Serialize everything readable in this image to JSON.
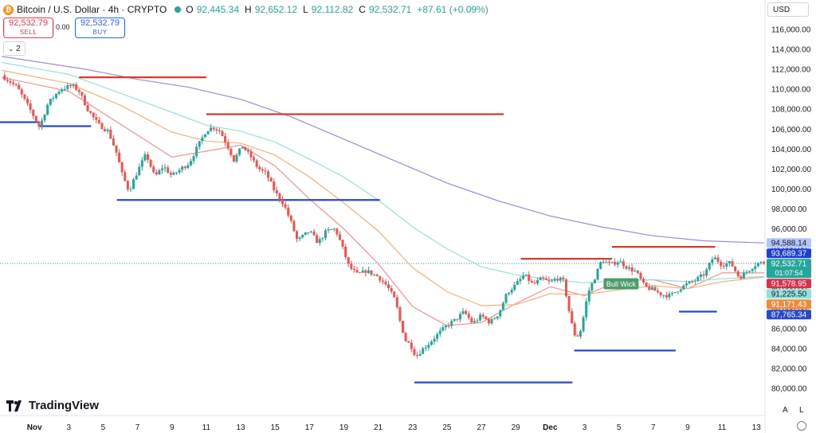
{
  "header": {
    "symbol": "Bitcoin / U.S. Dollar · 4h · CRYPTO",
    "coin_glyph": "₿",
    "ohlc": [
      {
        "k": "O",
        "v": "92,445.34"
      },
      {
        "k": "H",
        "v": "92,652.12"
      },
      {
        "k": "L",
        "v": "92,112.82"
      },
      {
        "k": "C",
        "v": "92,532.71"
      }
    ],
    "change": "+87.61 (+0.09%)",
    "change_color": "#26a69a"
  },
  "trade": {
    "sell_price": "92,532.79",
    "sell_label": "SELL",
    "buy_price": "92,532.79",
    "buy_label": "BUY",
    "spread": "0.00"
  },
  "indicators_count": "2",
  "currency": "USD",
  "branding": "TradingView",
  "controls": {
    "auto": "A",
    "log": "L"
  },
  "chart_data": {
    "type": "candlestick",
    "interval": "4h",
    "y_axis": {
      "ticks": [
        80000,
        82000,
        84000,
        86000,
        88000,
        90000,
        92000,
        94000,
        96000,
        98000,
        100000,
        102000,
        104000,
        106000,
        108000,
        110000,
        112000,
        114000,
        116000
      ],
      "tick_labels": [
        "80,000.00",
        "82,000.00",
        "84,000.00",
        "86,000.00",
        "88,000.00",
        "90,000.00",
        "92,000.00",
        "94,000.00",
        "96,000.00",
        "98,000.00",
        "100,000.00",
        "102,000.00",
        "104,000.00",
        "106,000.00",
        "108,000.00",
        "110,000.00",
        "112,000.00",
        "114,000.00",
        "116,000.00"
      ],
      "range": [
        79200,
        117200
      ]
    },
    "x_axis": {
      "ticks": [
        0,
        2,
        4,
        6,
        8,
        10,
        12,
        14,
        16,
        18,
        20,
        22,
        24,
        26,
        28,
        30,
        32,
        34,
        36,
        38,
        40,
        42
      ],
      "tick_labels": [
        "Nov",
        "3",
        "5",
        "7",
        "9",
        "11",
        "13",
        "15",
        "17",
        "19",
        "21",
        "23",
        "25",
        "27",
        "29",
        "Dec",
        "3",
        "5",
        "7",
        "9",
        "11",
        "13"
      ],
      "range_days": [
        -2,
        42.5
      ],
      "unit": "days since Nov 1"
    },
    "price_path": [
      [
        -1.9,
        111400
      ],
      [
        -1.0,
        110200
      ],
      [
        -0.2,
        107800
      ],
      [
        0.3,
        106200
      ],
      [
        0.8,
        108600
      ],
      [
        1.5,
        110000
      ],
      [
        2.2,
        110400
      ],
      [
        2.6,
        109800
      ],
      [
        3.1,
        108000
      ],
      [
        3.7,
        106500
      ],
      [
        4.3,
        105800
      ],
      [
        4.8,
        103500
      ],
      [
        5.1,
        101500
      ],
      [
        5.5,
        99800
      ],
      [
        6.0,
        101800
      ],
      [
        6.5,
        103500
      ],
      [
        7.0,
        101200
      ],
      [
        7.5,
        102300
      ],
      [
        8.0,
        101300
      ],
      [
        8.5,
        102000
      ],
      [
        9.0,
        102600
      ],
      [
        9.6,
        104600
      ],
      [
        10.0,
        105900
      ],
      [
        10.4,
        106200
      ],
      [
        10.8,
        105800
      ],
      [
        11.3,
        104100
      ],
      [
        11.6,
        102900
      ],
      [
        12.1,
        104300
      ],
      [
        12.6,
        103200
      ],
      [
        13.0,
        102100
      ],
      [
        13.5,
        101500
      ],
      [
        14.0,
        99700
      ],
      [
        14.5,
        98500
      ],
      [
        14.9,
        96800
      ],
      [
        15.3,
        94800
      ],
      [
        16.0,
        95800
      ],
      [
        16.5,
        94600
      ],
      [
        17.0,
        95800
      ],
      [
        17.5,
        96000
      ],
      [
        17.8,
        94700
      ],
      [
        18.3,
        92200
      ],
      [
        18.8,
        91400
      ],
      [
        19.3,
        91800
      ],
      [
        20.0,
        91200
      ],
      [
        20.5,
        90300
      ],
      [
        21.0,
        88800
      ],
      [
        21.3,
        86500
      ],
      [
        21.6,
        84800
      ],
      [
        21.9,
        84300
      ],
      [
        22.2,
        83200
      ],
      [
        22.5,
        83800
      ],
      [
        23.0,
        84600
      ],
      [
        23.5,
        85500
      ],
      [
        24.0,
        86300
      ],
      [
        24.5,
        86900
      ],
      [
        25.0,
        87700
      ],
      [
        25.5,
        86500
      ],
      [
        26.0,
        87300
      ],
      [
        26.5,
        86600
      ],
      [
        27.0,
        87500
      ],
      [
        27.5,
        89600
      ],
      [
        28.0,
        90400
      ],
      [
        28.5,
        91400
      ],
      [
        29.0,
        90400
      ],
      [
        29.5,
        91000
      ],
      [
        30.0,
        90600
      ],
      [
        30.4,
        91100
      ],
      [
        30.8,
        90700
      ],
      [
        31.2,
        86800
      ],
      [
        31.5,
        85000
      ],
      [
        31.8,
        85900
      ],
      [
        32.2,
        89600
      ],
      [
        32.6,
        91100
      ],
      [
        33.0,
        92900
      ],
      [
        33.5,
        92400
      ],
      [
        34.0,
        92800
      ],
      [
        34.5,
        92100
      ],
      [
        35.0,
        91700
      ],
      [
        35.5,
        90200
      ],
      [
        36.0,
        89900
      ],
      [
        36.5,
        89400
      ],
      [
        37.0,
        89300
      ],
      [
        37.5,
        90000
      ],
      [
        38.0,
        90500
      ],
      [
        38.5,
        90900
      ],
      [
        39.0,
        91500
      ],
      [
        39.5,
        93200
      ],
      [
        40.0,
        92400
      ],
      [
        40.5,
        92600
      ],
      [
        41.0,
        91100
      ],
      [
        41.5,
        91800
      ],
      [
        42.0,
        92500
      ],
      [
        42.2,
        92600
      ],
      [
        42.45,
        92532.71
      ]
    ],
    "moving_averages": [
      {
        "color": "#f2928e",
        "points": [
          [
            -1.9,
            111200
          ],
          [
            2,
            109800
          ],
          [
            5,
            106500
          ],
          [
            8,
            103200
          ],
          [
            10,
            103800
          ],
          [
            12,
            104400
          ],
          [
            14,
            102300
          ],
          [
            16,
            99000
          ],
          [
            18,
            96000
          ],
          [
            20,
            92500
          ],
          [
            22,
            88200
          ],
          [
            24,
            86300
          ],
          [
            26,
            86600
          ],
          [
            28,
            88500
          ],
          [
            30,
            90200
          ],
          [
            32,
            89300
          ],
          [
            34,
            90800
          ],
          [
            36,
            90900
          ],
          [
            38,
            90000
          ],
          [
            40,
            91600
          ],
          [
            42.45,
            91578.95
          ]
        ]
      },
      {
        "color": "#f5b17a",
        "points": [
          [
            -1.9,
            111900
          ],
          [
            2,
            110600
          ],
          [
            5,
            108400
          ],
          [
            8,
            105700
          ],
          [
            10,
            104800
          ],
          [
            12,
            104600
          ],
          [
            14,
            103400
          ],
          [
            16,
            101200
          ],
          [
            18,
            98600
          ],
          [
            20,
            95800
          ],
          [
            22,
            92100
          ],
          [
            24,
            89700
          ],
          [
            26,
            88300
          ],
          [
            28,
            88400
          ],
          [
            30,
            89500
          ],
          [
            32,
            89400
          ],
          [
            34,
            89900
          ],
          [
            36,
            90300
          ],
          [
            38,
            90000
          ],
          [
            40,
            90700
          ],
          [
            42.45,
            91171.43
          ]
        ]
      },
      {
        "color": "#9bded9",
        "points": [
          [
            -1.9,
            112700
          ],
          [
            2,
            111500
          ],
          [
            5,
            109600
          ],
          [
            8,
            107700
          ],
          [
            10,
            106400
          ],
          [
            12,
            105800
          ],
          [
            14,
            104700
          ],
          [
            16,
            103000
          ],
          [
            18,
            101200
          ],
          [
            20,
            98900
          ],
          [
            22,
            96200
          ],
          [
            24,
            94000
          ],
          [
            26,
            92200
          ],
          [
            28,
            91400
          ],
          [
            30,
            90900
          ],
          [
            32,
            90600
          ],
          [
            34,
            90800
          ],
          [
            36,
            90900
          ],
          [
            38,
            90700
          ],
          [
            40,
            91000
          ],
          [
            42.45,
            91225.5
          ]
        ]
      },
      {
        "color": "#9d8ccf",
        "points": [
          [
            -1.9,
            113300
          ],
          [
            0,
            112800
          ],
          [
            3,
            112000
          ],
          [
            6,
            111000
          ],
          [
            9,
            110200
          ],
          [
            12,
            109000
          ],
          [
            15,
            107200
          ],
          [
            18,
            105000
          ],
          [
            21,
            102800
          ],
          [
            24,
            100600
          ],
          [
            27,
            98800
          ],
          [
            30,
            97300
          ],
          [
            33,
            96200
          ],
          [
            36,
            95300
          ],
          [
            39,
            94800
          ],
          [
            42.45,
            94588.14
          ]
        ]
      }
    ],
    "horizontal_levels": [
      {
        "color": "#d23c2f",
        "price": 111200,
        "x_from": 2.6,
        "x_to": 10.0
      },
      {
        "color": "#d23c2f",
        "price": 107500,
        "x_from": 10.0,
        "x_to": 27.3
      },
      {
        "color": "#d23c2f",
        "price": 93000,
        "x_from": 28.3,
        "x_to": 33.6
      },
      {
        "color": "#d23c2f",
        "price": 94200,
        "x_from": 33.6,
        "x_to": 39.6
      },
      {
        "color": "#2a49c9",
        "price": 106700,
        "x_from": -2.0,
        "x_to": 0.3
      },
      {
        "color": "#2a49c9",
        "price": 106300,
        "x_from": 0.3,
        "x_to": 3.3
      },
      {
        "color": "#2a49c9",
        "price": 98900,
        "x_from": 4.8,
        "x_to": 20.1
      },
      {
        "color": "#2a49c9",
        "price": 80600,
        "x_from": 22.1,
        "x_to": 31.3
      },
      {
        "color": "#2a49c9",
        "price": 83800,
        "x_from": 31.4,
        "x_to": 37.3
      },
      {
        "color": "#2a49c9",
        "price": 87700,
        "x_from": 37.5,
        "x_to": 39.7
      }
    ],
    "annotation": {
      "text": "Bull Wick",
      "price": 90500,
      "x": 33.2,
      "bg": "#4f9b6e"
    },
    "price_labels": [
      {
        "text": "94,588.14",
        "bg": "#b3c5ff",
        "fg": "#131722",
        "price": 94588.14
      },
      {
        "text": "93,689.37",
        "bg": "#1e3fd1",
        "fg": "#ffffff",
        "price": 93689.37
      },
      {
        "text": "92,532.71",
        "bg": "#26a69a",
        "fg": "#ffffff",
        "price": 92532.71,
        "sub": "01:07:54"
      },
      {
        "text": "91,578.95",
        "bg": "#d6334a",
        "fg": "#ffffff",
        "price": 91578.95
      },
      {
        "text": "91,225.50",
        "bg": "#8fe3da",
        "fg": "#131722",
        "price": 91225.5
      },
      {
        "text": "91,171.43",
        "bg": "#f08a3a",
        "fg": "#ffffff",
        "price": 91171.43
      },
      {
        "text": "87,765.34",
        "bg": "#2a49c9",
        "fg": "#ffffff",
        "price": 87765.34
      }
    ]
  }
}
